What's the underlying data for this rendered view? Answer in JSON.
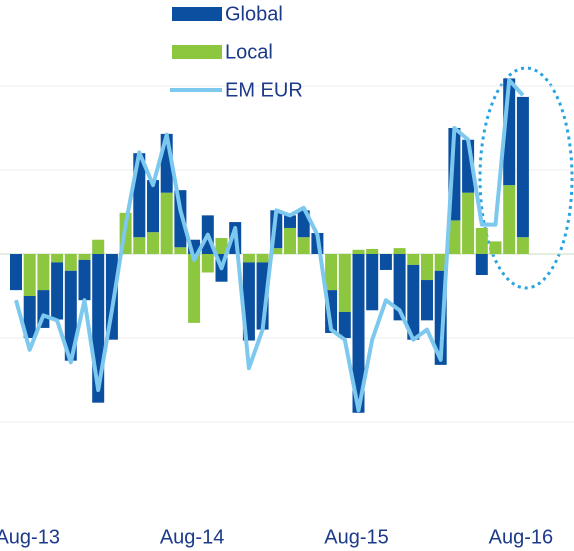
{
  "chart_data": {
    "type": "stacked_bar_line",
    "categories": [
      null,
      "Aug-13",
      null,
      null,
      null,
      null,
      null,
      null,
      null,
      null,
      null,
      null,
      null,
      "Aug-14",
      null,
      null,
      null,
      null,
      null,
      null,
      null,
      null,
      null,
      null,
      null,
      "Aug-15",
      null,
      null,
      null,
      null,
      null,
      null,
      null,
      null,
      null,
      null,
      null,
      "Aug-16"
    ],
    "series": [
      {
        "name": "Global",
        "color": "#0b4fa0",
        "kind": "bar",
        "values": [
          -0.43,
          -0.5,
          -0.45,
          -0.68,
          -1.07,
          -0.48,
          -1.77,
          -1.02,
          0,
          1.0,
          0.62,
          0.7,
          0.68,
          0.17,
          0.46,
          -0.33,
          0.38,
          -0.93,
          -0.8,
          0.45,
          0.15,
          0.32,
          0.25,
          -0.51,
          -0.31,
          -1.89,
          -0.67,
          -0.19,
          -0.79,
          -0.89,
          -0.48,
          -1.12,
          1.1,
          0.63,
          -0.25,
          0,
          1.27,
          1.67
        ]
      },
      {
        "name": "Local",
        "color": "#8dc63f",
        "kind": "bar",
        "values": [
          0,
          -0.5,
          -0.43,
          -0.1,
          -0.2,
          -0.07,
          0.17,
          0,
          0.49,
          0.2,
          0.26,
          0.73,
          0.08,
          -0.82,
          -0.22,
          0.19,
          0,
          -0.1,
          -0.1,
          0.07,
          0.31,
          0.2,
          0,
          -0.43,
          -0.69,
          0.05,
          0.06,
          0,
          0.07,
          -0.13,
          -0.31,
          -0.2,
          0.4,
          0.73,
          0.31,
          0.15,
          0.82,
          0.2
        ]
      },
      {
        "name": "EM EUR",
        "color": "#7cc8ee",
        "kind": "line",
        "values": [
          -0.55,
          -1.14,
          -0.73,
          -0.79,
          -1.29,
          -0.55,
          -1.62,
          -0.67,
          0.35,
          1.21,
          0.82,
          1.42,
          0.52,
          -0.07,
          0.23,
          -0.17,
          0.31,
          -1.36,
          -0.9,
          0.52,
          0.46,
          0.55,
          0.23,
          -0.9,
          -1.02,
          -1.86,
          -1.02,
          -0.55,
          -0.67,
          -1.02,
          -0.9,
          -1.26,
          1.5,
          1.36,
          0.35,
          0.35,
          2.07,
          1.89
        ]
      }
    ],
    "ylim": [
      -3,
      3
    ],
    "yticks": [
      -2,
      -1,
      0,
      1,
      2
    ],
    "grid": true
  }
}
